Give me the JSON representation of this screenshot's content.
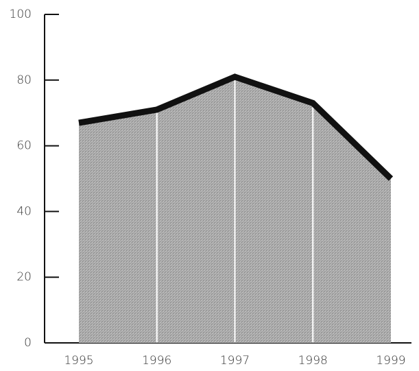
{
  "chart_data": {
    "type": "area",
    "categories": [
      "1995",
      "1996",
      "1997",
      "1998",
      "1999"
    ],
    "values": [
      67,
      71,
      81,
      73,
      50
    ],
    "color": "#111111",
    "fill": "#a9a9a9",
    "ylim": [
      0,
      100
    ],
    "yticks": [
      0,
      20,
      40,
      60,
      80,
      100
    ]
  }
}
